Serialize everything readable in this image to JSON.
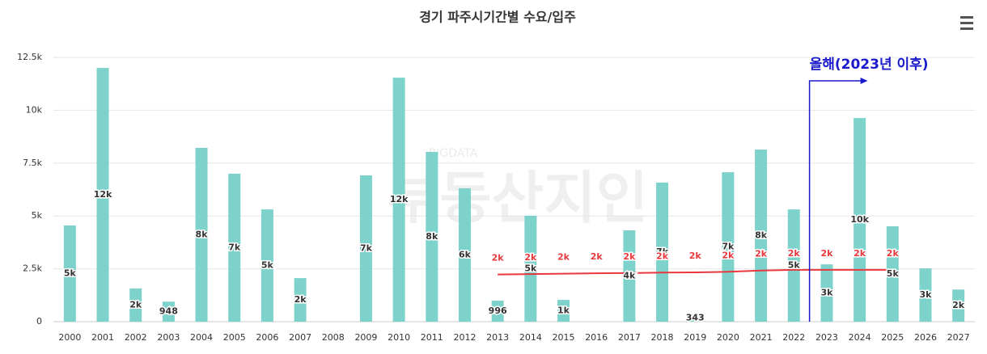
{
  "chart_data": {
    "type": "bar",
    "title": "경기 파주시기간별 수요/입주",
    "watermark": "부동산지인",
    "watermark_small": "BIGDATA",
    "annotation": "올해(2023년 이후)",
    "categories": [
      "2000",
      "2001",
      "2002",
      "2003",
      "2004",
      "2005",
      "2006",
      "2007",
      "2008",
      "2009",
      "2010",
      "2011",
      "2012",
      "2013",
      "2014",
      "2015",
      "2016",
      "2017",
      "2018",
      "2019",
      "2020",
      "2021",
      "2022",
      "2023",
      "2024",
      "2025",
      "2026",
      "2027"
    ],
    "series": [
      {
        "type": "bar",
        "color": "#7dd3cb",
        "values": [
          4550,
          12000,
          1570,
          948,
          8220,
          7000,
          5310,
          2060,
          null,
          6920,
          11540,
          8030,
          6310,
          996,
          5010,
          1030,
          null,
          4320,
          6580,
          343,
          7070,
          8140,
          5310,
          2710,
          9630,
          4510,
          2520,
          1520
        ],
        "value_labels": [
          "5k",
          "12k",
          "2k",
          "948",
          "8k",
          "7k",
          "5k",
          "2k",
          null,
          "7k",
          "12k",
          "8k",
          "6k",
          "996",
          "5k",
          "1k",
          null,
          "4k",
          "7k",
          "343",
          "7k",
          "8k",
          "5k",
          "3k",
          "10k",
          "5k",
          "3k",
          "2k"
        ]
      },
      {
        "type": "line",
        "color": "#e8383d",
        "values": [
          null,
          null,
          null,
          null,
          null,
          null,
          null,
          null,
          null,
          null,
          null,
          null,
          null,
          2230,
          2250,
          2270,
          2290,
          2300,
          2320,
          2330,
          2360,
          2420,
          2450,
          2450,
          2450,
          2450,
          null,
          null
        ],
        "value_labels": [
          null,
          null,
          null,
          null,
          null,
          null,
          null,
          null,
          null,
          null,
          null,
          null,
          null,
          "2k",
          "2k",
          "2k",
          "2k",
          "2k",
          "2k",
          "2k",
          "2k",
          "2k",
          "2k",
          "2k",
          "2k",
          "2k",
          null,
          null
        ]
      }
    ],
    "ylim": [
      0,
      12500
    ],
    "yticks": [
      0,
      {
        "value": 2500,
        "label": "2.5k"
      },
      {
        "value": 5000,
        "label": "5k"
      },
      {
        "value": 7500,
        "label": "7.5k"
      },
      {
        "value": 10000,
        "label": "10k"
      },
      {
        "value": 12500,
        "label": "12.5k"
      }
    ],
    "grid": true
  }
}
